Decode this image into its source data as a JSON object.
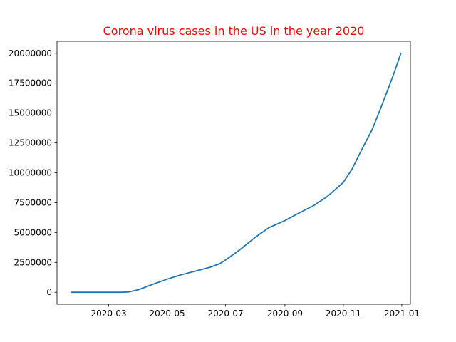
{
  "chart_data": {
    "type": "line",
    "title": "Corona virus cases in the US in the year 2020",
    "title_color": "#ff0000",
    "xlabel": "",
    "ylabel": "",
    "line_color": "#1f77b4",
    "grid": false,
    "legend": "none",
    "x_axis_type": "date",
    "xlim": [
      "2020-01-07",
      "2021-01-10"
    ],
    "ylim": [
      -1000000,
      21000000
    ],
    "x_ticks": [
      "2020-03",
      "2020-05",
      "2020-07",
      "2020-09",
      "2020-11",
      "2021-01"
    ],
    "y_ticks": [
      0,
      2500000,
      5000000,
      7500000,
      10000000,
      12500000,
      15000000,
      17500000,
      20000000
    ],
    "y_tick_labels": [
      "0",
      "2500000",
      "5000000",
      "7500000",
      "10000000",
      "12500000",
      "15000000",
      "17500000",
      "20000000"
    ],
    "series": [
      {
        "name": "",
        "x": [
          "2020-01-22",
          "2020-02-01",
          "2020-02-15",
          "2020-03-01",
          "2020-03-15",
          "2020-03-22",
          "2020-04-01",
          "2020-04-15",
          "2020-05-01",
          "2020-05-15",
          "2020-06-01",
          "2020-06-15",
          "2020-06-25",
          "2020-07-01",
          "2020-07-15",
          "2020-08-01",
          "2020-08-15",
          "2020-09-01",
          "2020-09-15",
          "2020-10-01",
          "2020-10-15",
          "2020-11-01",
          "2020-11-10",
          "2020-11-20",
          "2020-12-01",
          "2020-12-10",
          "2020-12-20",
          "2020-12-25",
          "2020-12-31"
        ],
        "y": [
          1,
          8,
          15,
          75,
          3500,
          33000,
          215000,
          640000,
          1100000,
          1450000,
          1800000,
          2100000,
          2400000,
          2700000,
          3500000,
          4600000,
          5400000,
          6000000,
          6600000,
          7250000,
          8000000,
          9200000,
          10300000,
          11900000,
          13600000,
          15400000,
          17500000,
          18600000,
          20000000
        ]
      }
    ]
  }
}
